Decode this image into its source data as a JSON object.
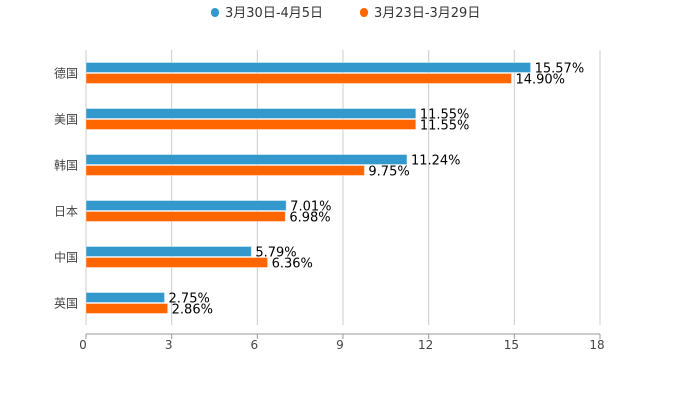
{
  "chart_data": {
    "type": "bar",
    "orientation": "horizontal",
    "categories": [
      "德国",
      "美国",
      "韩国",
      "日本",
      "中国",
      "英国"
    ],
    "series": [
      {
        "name": "3月30日-4月5日",
        "color": "#3399cc",
        "values": [
          15.57,
          11.55,
          11.24,
          7.01,
          5.79,
          2.75
        ],
        "labels": [
          "15.57%",
          "11.55%",
          "11.24%",
          "7.01%",
          "5.79%",
          "2.75%"
        ]
      },
      {
        "name": "3月23日-3月29日",
        "color": "#ff6600",
        "values": [
          14.9,
          11.55,
          9.75,
          6.98,
          6.36,
          2.86
        ],
        "labels": [
          "14.90%",
          "11.55%",
          "9.75%",
          "6.98%",
          "6.36%",
          "2.86%"
        ]
      }
    ],
    "xlim": [
      0,
      18
    ],
    "xticks": [
      0,
      3,
      6,
      9,
      12,
      15,
      18
    ],
    "grid": true,
    "legend_position": "top-center",
    "title": "",
    "xlabel": "",
    "ylabel": ""
  }
}
